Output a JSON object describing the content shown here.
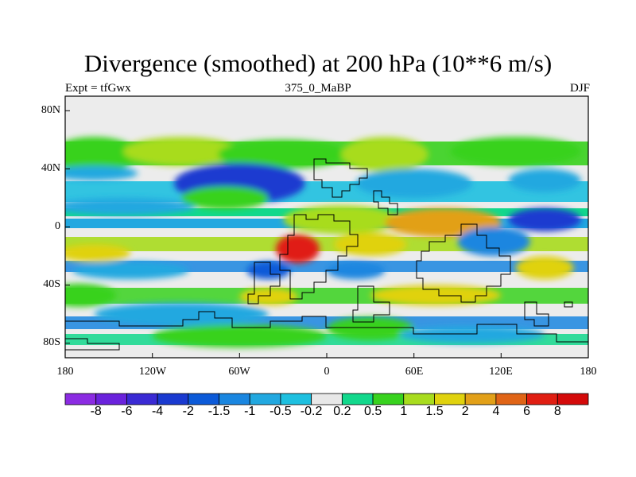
{
  "title": "Divergence (smoothed) at 200 hPa (10**6 m/s)",
  "subtitle_left": "Expt = tfGwx",
  "subtitle_center": "375_0_MaBP",
  "subtitle_right": "DJF",
  "lat_labels": [
    "80N",
    "40N",
    "0",
    "40S",
    "80S"
  ],
  "lon_labels": [
    "180",
    "120W",
    "60W",
    "0",
    "60E",
    "120E",
    "180"
  ],
  "colorbar": {
    "labels": [
      "-8",
      "-6",
      "-4",
      "-2",
      "-1.5",
      "-1",
      "-0.5",
      "-0.2",
      "0.2",
      "0.5",
      "1",
      "1.5",
      "2",
      "4",
      "6",
      "8"
    ],
    "colors": [
      "#8b2be2",
      "#6a22dc",
      "#3a2ad4",
      "#1a3ad0",
      "#0c5ad8",
      "#1a86e0",
      "#22a8e0",
      "#1ec0e0",
      "#e8e8e8",
      "#12d88c",
      "#38d21e",
      "#a8dc1e",
      "#e0d20e",
      "#e2a018",
      "#e06416",
      "#e01e12",
      "#d40a0a"
    ]
  },
  "chart_data": {
    "type": "heatmap",
    "title": "Divergence (smoothed) at 200 hPa (10**6 m/s)",
    "variable": "Divergence (smoothed)",
    "level": "200 hPa",
    "units": "10**6 m/s",
    "experiment": "tfGwx",
    "period": "375_0_MaBP",
    "season": "DJF",
    "xlim": [
      -180,
      180
    ],
    "ylim": [
      -90,
      90
    ],
    "contour_levels": [
      -8,
      -6,
      -4,
      -2,
      -1.5,
      -1,
      -0.5,
      -0.2,
      0.2,
      0.5,
      1,
      1.5,
      2,
      4,
      6,
      8
    ],
    "blobs": [
      {
        "lon": -160,
        "lat": 50,
        "rx": 30,
        "ry": 12,
        "value": 0.8
      },
      {
        "lon": -100,
        "lat": 52,
        "rx": 40,
        "ry": 10,
        "value": 1.0
      },
      {
        "lon": -30,
        "lat": 50,
        "rx": 45,
        "ry": 10,
        "value": 0.8
      },
      {
        "lon": 40,
        "lat": 50,
        "rx": 30,
        "ry": 12,
        "value": 1.2
      },
      {
        "lon": 130,
        "lat": 52,
        "rx": 45,
        "ry": 10,
        "value": 0.8
      },
      {
        "lon": -160,
        "lat": 37,
        "rx": 30,
        "ry": 5,
        "value": -0.6
      },
      {
        "lon": -60,
        "lat": 30,
        "rx": 45,
        "ry": 14,
        "value": -2.5
      },
      {
        "lon": 60,
        "lat": 30,
        "rx": 40,
        "ry": 10,
        "value": -1.0
      },
      {
        "lon": 150,
        "lat": 32,
        "rx": 25,
        "ry": 8,
        "value": -0.8
      },
      {
        "lon": -140,
        "lat": 14,
        "rx": 50,
        "ry": 6,
        "value": -1.0
      },
      {
        "lon": -70,
        "lat": 20,
        "rx": 30,
        "ry": 8,
        "value": 0.8
      },
      {
        "lon": 10,
        "lat": 5,
        "rx": 40,
        "ry": 10,
        "value": 1.2
      },
      {
        "lon": 80,
        "lat": 3,
        "rx": 40,
        "ry": 10,
        "value": 2.2
      },
      {
        "lon": 150,
        "lat": 5,
        "rx": 25,
        "ry": 8,
        "value": -2.2
      },
      {
        "lon": -160,
        "lat": -18,
        "rx": 25,
        "ry": 6,
        "value": 1.8
      },
      {
        "lon": -20,
        "lat": -15,
        "rx": 15,
        "ry": 10,
        "value": 6.0
      },
      {
        "lon": 30,
        "lat": -12,
        "rx": 25,
        "ry": 8,
        "value": 1.6
      },
      {
        "lon": 115,
        "lat": -10,
        "rx": 25,
        "ry": 10,
        "value": -1.5
      },
      {
        "lon": -135,
        "lat": -30,
        "rx": 40,
        "ry": 6,
        "value": -1.0
      },
      {
        "lon": -40,
        "lat": -30,
        "rx": 15,
        "ry": 6,
        "value": -2.0
      },
      {
        "lon": 20,
        "lat": -30,
        "rx": 20,
        "ry": 6,
        "value": -1.5
      },
      {
        "lon": 150,
        "lat": -28,
        "rx": 20,
        "ry": 8,
        "value": 1.5
      },
      {
        "lon": -170,
        "lat": -47,
        "rx": 25,
        "ry": 8,
        "value": 0.8
      },
      {
        "lon": -40,
        "lat": -48,
        "rx": 20,
        "ry": 6,
        "value": 1.5
      },
      {
        "lon": 75,
        "lat": -47,
        "rx": 45,
        "ry": 7,
        "value": 1.6
      },
      {
        "lon": -100,
        "lat": -60,
        "rx": 60,
        "ry": 8,
        "value": -0.8
      },
      {
        "lon": 30,
        "lat": -70,
        "rx": 30,
        "ry": 8,
        "value": 0.8
      },
      {
        "lon": -60,
        "lat": -75,
        "rx": 60,
        "ry": 8,
        "value": 0.8
      },
      {
        "lon": 100,
        "lat": -74,
        "rx": 50,
        "ry": 6,
        "value": -0.8
      }
    ]
  }
}
